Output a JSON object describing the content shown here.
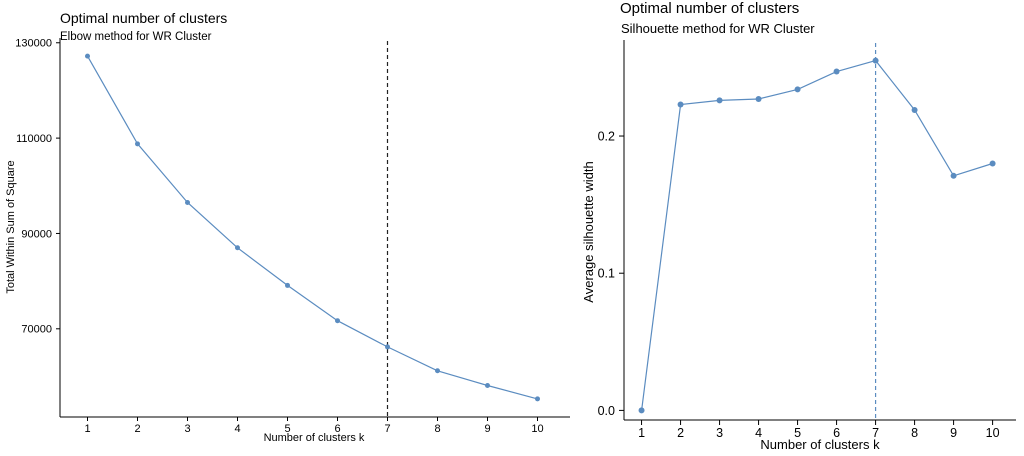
{
  "chart_data": [
    {
      "type": "line",
      "title": "Optimal number of clusters",
      "subtitle": "Elbow method for WR Cluster",
      "xlabel": "Number of clusters k",
      "ylabel": "Total Within Sum of Square",
      "x": [
        1,
        2,
        3,
        4,
        5,
        6,
        7,
        8,
        9,
        10
      ],
      "y": [
        127200,
        108800,
        96500,
        87000,
        79100,
        71700,
        66200,
        61200,
        58100,
        55300
      ],
      "xticks": [
        "1",
        "2",
        "3",
        "4",
        "5",
        "6",
        "7",
        "8",
        "9",
        "10"
      ],
      "yticks": [
        70000,
        90000,
        110000,
        130000
      ],
      "ytick_labels": [
        "70000",
        "90000",
        "110000",
        "130000"
      ],
      "xlim": [
        0.45,
        10.65
      ],
      "ylim": [
        51500,
        131000
      ],
      "optimal_k": 7,
      "vline_style": "dashed",
      "vline_color": "#222222",
      "line_color": "#5b8cc0",
      "grid": false,
      "legend": "none"
    },
    {
      "type": "line",
      "title": "Optimal number of clusters",
      "subtitle": "Silhouette method for WR Cluster",
      "xlabel": "Number of clusters k",
      "ylabel": "Average silhouette width",
      "x": [
        1,
        2,
        3,
        4,
        5,
        6,
        7,
        8,
        9,
        10
      ],
      "y": [
        0.0,
        0.223,
        0.226,
        0.227,
        0.234,
        0.247,
        0.255,
        0.219,
        0.171,
        0.18
      ],
      "xticks": [
        "1",
        "2",
        "3",
        "4",
        "5",
        "6",
        "7",
        "8",
        "9",
        "10"
      ],
      "yticks": [
        0.0,
        0.1,
        0.2
      ],
      "ytick_labels": [
        "0.0",
        "0.1",
        "0.2"
      ],
      "xlim": [
        0.55,
        10.6
      ],
      "ylim": [
        -0.007,
        0.27
      ],
      "optimal_k": 7,
      "vline_style": "dashed",
      "vline_color": "#5b8cc0",
      "line_color": "#5b8cc0",
      "grid": false,
      "legend": "none"
    }
  ]
}
